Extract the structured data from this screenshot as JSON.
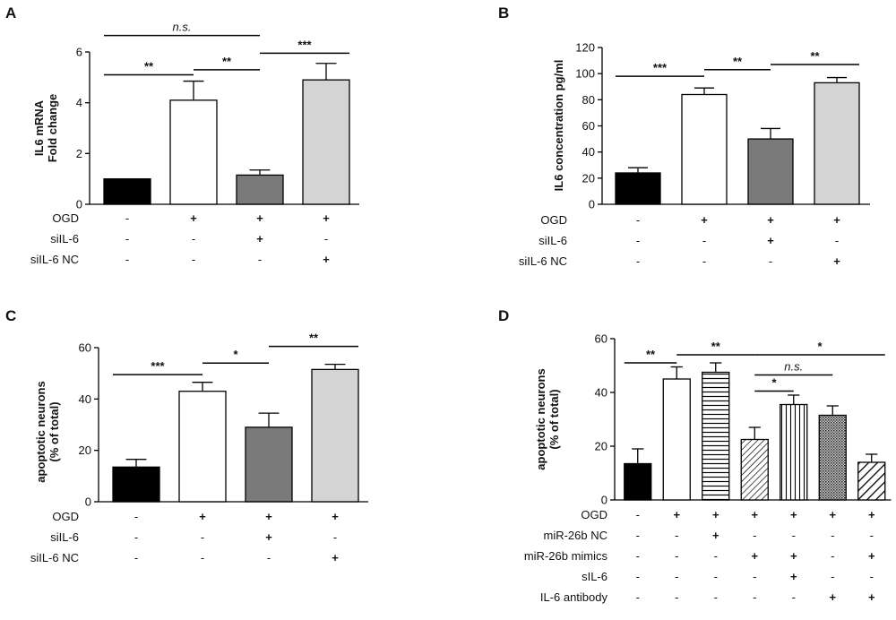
{
  "chart_data": [
    {
      "panel": "A",
      "type": "bar",
      "ylabel_lines": [
        "IL6 mRNA",
        "Fold change"
      ],
      "ylim": [
        0,
        6
      ],
      "yticks": [
        0,
        2,
        4,
        6
      ],
      "categories": [
        "1",
        "2",
        "3",
        "4"
      ],
      "values": [
        1.0,
        4.1,
        1.15,
        4.9
      ],
      "errors": [
        0.0,
        0.75,
        0.2,
        0.65
      ],
      "fills": [
        "black",
        "white",
        "gray",
        "lightgray"
      ],
      "conditions": [
        {
          "name": "OGD",
          "signs": [
            "-",
            "+",
            "+",
            "+"
          ]
        },
        {
          "name": "siIL-6",
          "signs": [
            "-",
            "-",
            "+",
            "-"
          ]
        },
        {
          "name": "siIL-6 NC",
          "signs": [
            "-",
            "-",
            "-",
            "+"
          ]
        }
      ],
      "significance": [
        {
          "from": 0,
          "to": 2,
          "level": 6.65,
          "label": "n.s."
        },
        {
          "from": 0,
          "to": 1,
          "level": 5.1,
          "label": "**"
        },
        {
          "from": 1,
          "to": 2,
          "level": 5.3,
          "label": "**"
        },
        {
          "from": 2,
          "to": 3,
          "level": 5.95,
          "label": "***"
        }
      ]
    },
    {
      "panel": "B",
      "type": "bar",
      "ylabel_lines": [
        "IL6 concentration pg/ml"
      ],
      "ylim": [
        0,
        120
      ],
      "yticks": [
        0,
        20,
        40,
        60,
        80,
        100,
        120
      ],
      "categories": [
        "1",
        "2",
        "3",
        "4"
      ],
      "values": [
        24,
        84,
        50,
        93
      ],
      "errors": [
        4,
        5,
        8,
        4
      ],
      "fills": [
        "black",
        "white",
        "gray",
        "lightgray"
      ],
      "conditions": [
        {
          "name": "OGD",
          "signs": [
            "-",
            "+",
            "+",
            "+"
          ]
        },
        {
          "name": "siIL-6",
          "signs": [
            "-",
            "-",
            "+",
            "-"
          ]
        },
        {
          "name": "siIL-6 NC",
          "signs": [
            "-",
            "-",
            "-",
            "+"
          ]
        }
      ],
      "significance": [
        {
          "from": 0,
          "to": 1,
          "level": 98,
          "label": "***"
        },
        {
          "from": 1,
          "to": 2,
          "level": 103,
          "label": "**"
        },
        {
          "from": 2,
          "to": 3,
          "level": 107,
          "label": "**"
        }
      ]
    },
    {
      "panel": "C",
      "type": "bar",
      "ylabel_lines": [
        "apoptotic neurons",
        "(% of total)"
      ],
      "ylim": [
        0,
        60
      ],
      "yticks": [
        0,
        20,
        40,
        60
      ],
      "categories": [
        "1",
        "2",
        "3",
        "4"
      ],
      "values": [
        13.5,
        43,
        29,
        51.5
      ],
      "errors": [
        3,
        3.5,
        5.5,
        2
      ],
      "fills": [
        "black",
        "white",
        "gray",
        "lightgray"
      ],
      "conditions": [
        {
          "name": "OGD",
          "signs": [
            "-",
            "+",
            "+",
            "+"
          ]
        },
        {
          "name": "siIL-6",
          "signs": [
            "-",
            "-",
            "+",
            "-"
          ]
        },
        {
          "name": "siIL-6 NC",
          "signs": [
            "-",
            "-",
            "-",
            "+"
          ]
        }
      ],
      "significance": [
        {
          "from": 0,
          "to": 1,
          "level": 49.5,
          "label": "***"
        },
        {
          "from": 1,
          "to": 2,
          "level": 54,
          "label": "*"
        },
        {
          "from": 2,
          "to": 3,
          "level": 60.5,
          "label": "**"
        }
      ]
    },
    {
      "panel": "D",
      "type": "bar",
      "ylabel_lines": [
        "apoptotic neurons",
        "(% of total)"
      ],
      "ylim": [
        0,
        60
      ],
      "yticks": [
        0,
        20,
        40,
        60
      ],
      "categories": [
        "1",
        "2",
        "3",
        "4",
        "5",
        "6",
        "7"
      ],
      "values": [
        13.5,
        45,
        47.5,
        22.5,
        35.5,
        31.5,
        14
      ],
      "errors": [
        5.5,
        4.5,
        3.5,
        4.5,
        3.5,
        3.5,
        3
      ],
      "fills": [
        "black",
        "white",
        "hlines",
        "diag",
        "vlines",
        "dots",
        "diagwide"
      ],
      "conditions": [
        {
          "name": "OGD",
          "signs": [
            "-",
            "+",
            "+",
            "+",
            "+",
            "+",
            "+"
          ]
        },
        {
          "name": "miR-26b NC",
          "signs": [
            "-",
            "-",
            "+",
            "-",
            "-",
            "-",
            "-"
          ]
        },
        {
          "name": "miR-26b mimics",
          "signs": [
            "-",
            "-",
            "-",
            "+",
            "+",
            "-",
            "+"
          ]
        },
        {
          "name": "sIL-6",
          "signs": [
            "-",
            "-",
            "-",
            "-",
            "+",
            "-",
            "-"
          ]
        },
        {
          "name": "IL-6 antibody",
          "signs": [
            "-",
            "-",
            "-",
            "-",
            "-",
            "+",
            "+"
          ]
        }
      ],
      "significance": [
        {
          "from": 0,
          "to": 1,
          "level": 51,
          "label": "**"
        },
        {
          "from": 1,
          "to": 3,
          "level": 54,
          "label": "**"
        },
        {
          "from": 3,
          "to": 6,
          "level": 54,
          "label": "*"
        },
        {
          "from": 3,
          "to": 5,
          "level": 46.5,
          "label": "n.s."
        },
        {
          "from": 3,
          "to": 4,
          "level": 40.5,
          "label": "*"
        }
      ]
    }
  ]
}
